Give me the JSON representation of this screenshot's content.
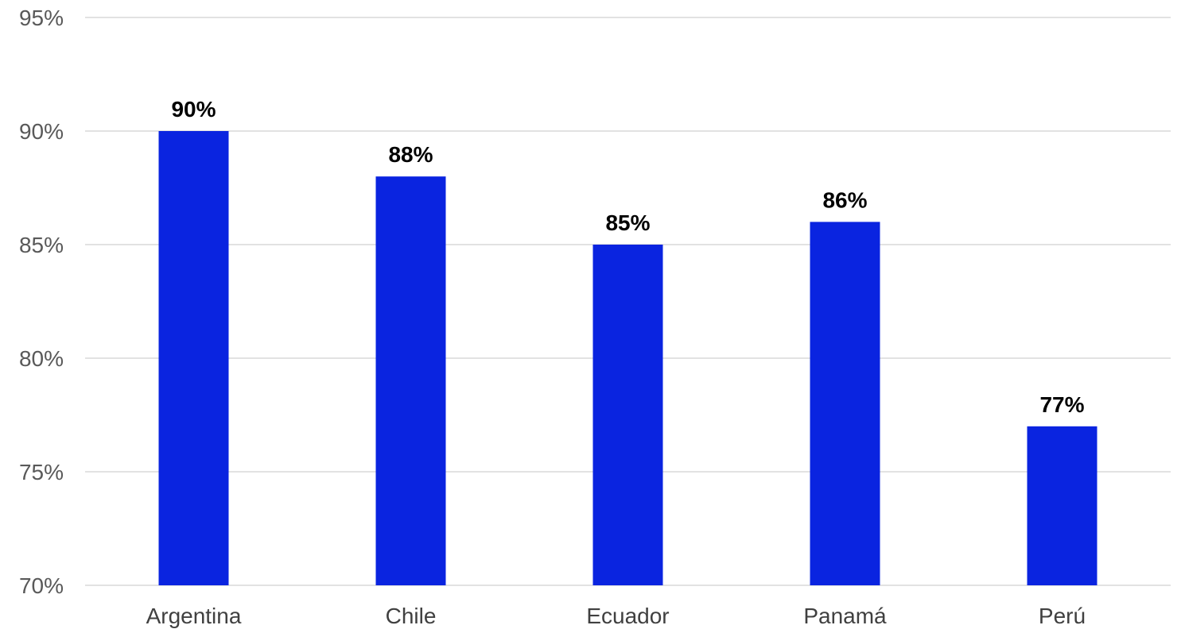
{
  "chart_data": {
    "type": "bar",
    "categories": [
      "Argentina",
      "Chile",
      "Ecuador",
      "Panamá",
      "Perú"
    ],
    "values": [
      90,
      88,
      85,
      86,
      77
    ],
    "data_labels": [
      "90%",
      "88%",
      "85%",
      "86%",
      "77%"
    ],
    "ylim": [
      70,
      95
    ],
    "yticks": [
      70,
      75,
      80,
      85,
      90,
      95
    ],
    "ytick_labels": [
      "70%",
      "75%",
      "80%",
      "85%",
      "90%",
      "95%"
    ],
    "grid": true,
    "legend": "none",
    "bar_color": "#0a24e0"
  }
}
